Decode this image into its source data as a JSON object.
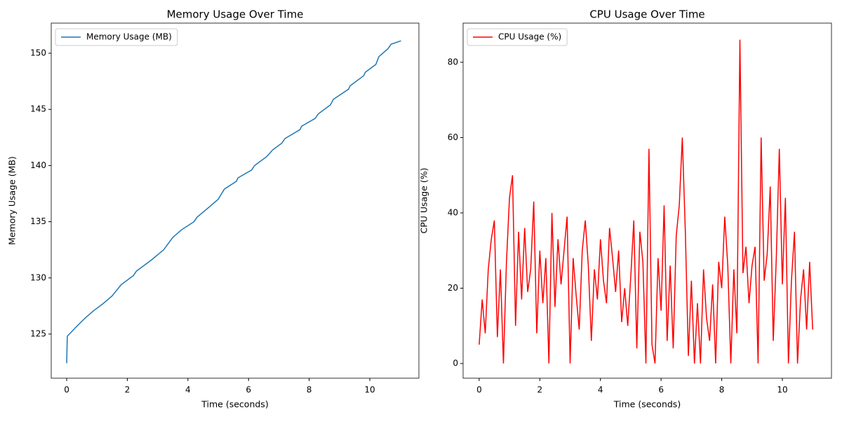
{
  "chart_data": [
    {
      "type": "line",
      "title": "Memory Usage Over Time",
      "x_label": "Time (seconds)",
      "y_label": "Memory Usage (MB)",
      "x": [
        0,
        0.02,
        0.3,
        0.6,
        0.9,
        1.2,
        1.5,
        1.8,
        2.2,
        2.3,
        2.8,
        3.2,
        3.5,
        3.8,
        4.2,
        4.3,
        4.7,
        5.0,
        5.2,
        5.6,
        5.65,
        6.1,
        6.2,
        6.6,
        6.8,
        7.1,
        7.2,
        7.7,
        7.75,
        8.2,
        8.3,
        8.7,
        8.8,
        9.3,
        9.35,
        9.8,
        9.85,
        10.2,
        10.3,
        10.6,
        10.7,
        11.03
      ],
      "series": [
        {
          "name": "Memory Usage (MB)",
          "color": "#1f77b4",
          "values": [
            122.4,
            124.8,
            125.6,
            126.4,
            127.1,
            127.7,
            128.4,
            129.4,
            130.2,
            130.6,
            131.6,
            132.5,
            133.6,
            134.3,
            135.0,
            135.4,
            136.3,
            137.0,
            137.9,
            138.6,
            138.9,
            139.6,
            140.0,
            140.8,
            141.4,
            142.0,
            142.4,
            143.2,
            143.5,
            144.2,
            144.6,
            145.4,
            145.9,
            146.8,
            147.1,
            148.0,
            148.3,
            149.0,
            149.7,
            150.4,
            150.8,
            151.1
          ]
        }
      ],
      "xlim": [
        -0.51,
        11.62
      ],
      "xticks": [
        0,
        2,
        4,
        6,
        8,
        10
      ],
      "ylim": [
        121.07,
        152.68
      ],
      "yticks": [
        125,
        130,
        135,
        140,
        145,
        150
      ],
      "legend": "upper left"
    },
    {
      "type": "line",
      "title": "CPU Usage Over Time",
      "x_label": "Time (seconds)",
      "y_label": "CPU Usage (%)",
      "x": [
        0,
        0.1,
        0.2,
        0.3,
        0.4,
        0.5,
        0.6,
        0.7,
        0.8,
        0.9,
        1.0,
        1.1,
        1.2,
        1.3,
        1.4,
        1.5,
        1.6,
        1.7,
        1.8,
        1.9,
        2.0,
        2.1,
        2.2,
        2.3,
        2.4,
        2.5,
        2.6,
        2.7,
        2.8,
        2.9,
        3.0,
        3.1,
        3.2,
        3.3,
        3.4,
        3.5,
        3.6,
        3.7,
        3.8,
        3.9,
        4.0,
        4.1,
        4.2,
        4.3,
        4.4,
        4.5,
        4.6,
        4.7,
        4.8,
        4.9,
        5.0,
        5.1,
        5.2,
        5.3,
        5.4,
        5.5,
        5.6,
        5.7,
        5.8,
        5.9,
        6.0,
        6.1,
        6.2,
        6.3,
        6.4,
        6.5,
        6.6,
        6.7,
        6.8,
        6.9,
        7.0,
        7.1,
        7.2,
        7.3,
        7.4,
        7.5,
        7.6,
        7.7,
        7.8,
        7.9,
        8.0,
        8.1,
        8.2,
        8.3,
        8.4,
        8.5,
        8.6,
        8.7,
        8.8,
        8.9,
        9.0,
        9.1,
        9.2,
        9.3,
        9.4,
        9.5,
        9.6,
        9.7,
        9.8,
        9.9,
        10.0,
        10.1,
        10.2,
        10.3,
        10.4,
        10.5,
        10.6,
        10.7,
        10.8,
        10.9,
        11.0
      ],
      "series": [
        {
          "name": "CPU Usage (%)",
          "color": "#ff0000",
          "values": [
            5,
            17,
            8,
            25,
            33,
            38,
            7,
            25,
            0,
            27,
            44,
            50,
            10,
            35,
            17,
            36,
            19,
            25,
            43,
            8,
            30,
            16,
            28,
            0,
            40,
            15,
            33,
            21,
            30,
            39,
            0,
            28,
            18,
            9,
            30,
            38,
            26,
            6,
            25,
            17,
            33,
            22,
            16,
            36,
            28,
            19,
            30,
            11,
            20,
            10,
            23,
            38,
            4,
            35,
            27,
            0,
            57,
            5,
            0,
            28,
            14,
            42,
            6,
            26,
            4,
            34,
            42,
            60,
            35,
            2,
            22,
            0,
            16,
            0,
            25,
            12,
            6,
            21,
            0,
            27,
            20,
            39,
            26,
            0,
            25,
            8,
            86,
            24,
            31,
            16,
            26,
            31,
            0,
            60,
            22,
            29,
            47,
            6,
            28,
            57,
            21,
            44,
            0,
            22,
            35,
            0,
            17,
            25,
            9,
            27,
            9
          ]
        }
      ],
      "xlim": [
        -0.53,
        11.62
      ],
      "xticks": [
        0,
        2,
        4,
        6,
        8,
        10
      ],
      "ylim": [
        -3.9,
        90.4
      ],
      "yticks": [
        0,
        20,
        40,
        60,
        80
      ],
      "legend": "upper left"
    }
  ]
}
